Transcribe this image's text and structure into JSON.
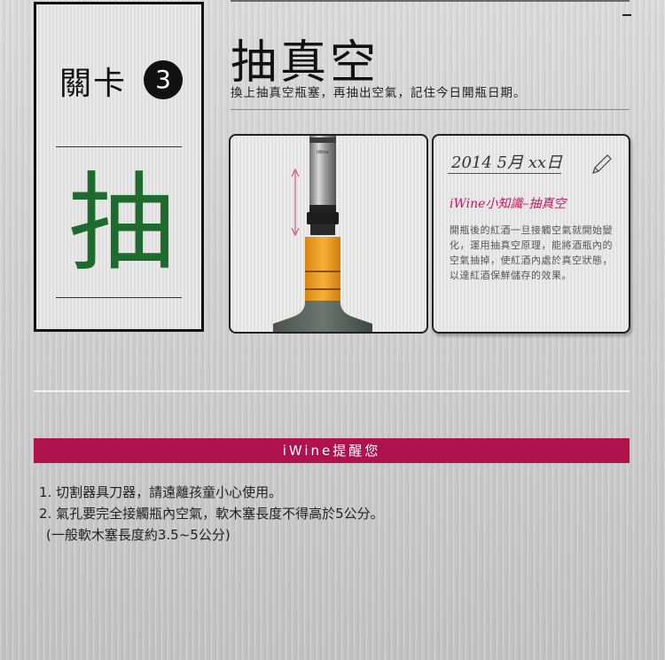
{
  "stage": {
    "label": "關卡",
    "number": "3",
    "big_char": "抽"
  },
  "header": {
    "title": "抽真空",
    "subtitle": "換上抽真空瓶塞，再抽出空氣，記住今日開瓶日期。"
  },
  "photo": {
    "description_icon": "vacuum-stopper-bottle-icon",
    "stopper_brand": "iWine"
  },
  "note": {
    "date": "2014 5月 xx日",
    "heading": "iWine小知識–抽真空",
    "body": "開瓶後的紅酒一旦接觸空氣就開始變化，運用抽真空原理，能將酒瓶內的空氣抽掉，使紅酒內處於真空狀態，以達紅酒保鮮儲存的效果。"
  },
  "reminder": {
    "title": "iWine提醒您",
    "items": [
      "1. 切割器具刀器，請遠離孩童小心使用。",
      "2. 氣孔要完全接觸瓶內空氣，軟木塞長度不得高於5公分。",
      "(一般軟木塞長度約3.5~5公分)"
    ]
  },
  "colors": {
    "accent": "#b0124d",
    "big_char": "#1e6b2e",
    "note_heading": "#c2185b",
    "bottle_label": "#f2a51e",
    "bottle_glass": "#5c6660"
  }
}
